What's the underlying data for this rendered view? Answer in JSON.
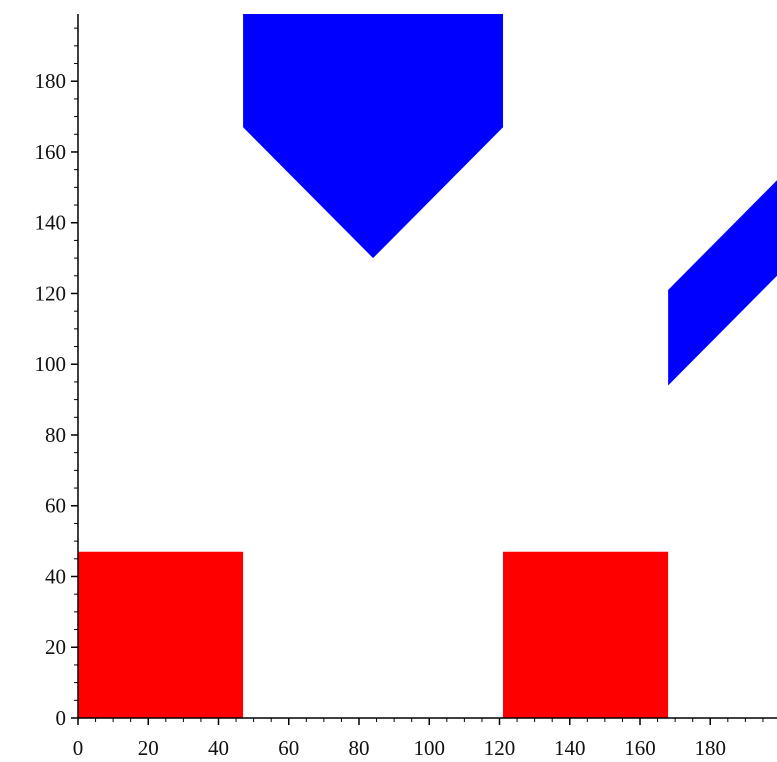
{
  "chart_data": {
    "type": "area",
    "xlim": [
      0,
      199
    ],
    "ylim": [
      0,
      199
    ],
    "x_ticks": [
      0,
      20,
      40,
      60,
      80,
      100,
      120,
      140,
      160,
      180
    ],
    "y_ticks": [
      0,
      20,
      40,
      60,
      80,
      100,
      120,
      140,
      160,
      180
    ],
    "x_minor_ticks": [
      5,
      10,
      15,
      25,
      30,
      35,
      45,
      50,
      55,
      65,
      70,
      75,
      85,
      90,
      95,
      105,
      110,
      115,
      125,
      130,
      135,
      145,
      150,
      155,
      165,
      170,
      175,
      185,
      190,
      195
    ],
    "y_minor_ticks": [
      5,
      10,
      15,
      25,
      30,
      35,
      45,
      50,
      55,
      65,
      70,
      75,
      85,
      90,
      95,
      105,
      110,
      115,
      125,
      130,
      135,
      145,
      150,
      155,
      165,
      170,
      175,
      185,
      190,
      195
    ],
    "grid": false,
    "colors": {
      "red": "#ff0000",
      "blue": "#0000ff",
      "axis": "#000000"
    },
    "series": [
      {
        "shape": "left-red-rectangle",
        "color": "red",
        "points": [
          [
            0,
            0
          ],
          [
            47,
            0
          ],
          [
            47,
            47
          ],
          [
            0,
            47
          ]
        ]
      },
      {
        "shape": "right-red-rectangle",
        "color": "red",
        "points": [
          [
            121,
            0
          ],
          [
            168,
            0
          ],
          [
            168,
            47
          ],
          [
            121,
            47
          ]
        ]
      },
      {
        "shape": "top-blue-pentagon",
        "color": "blue",
        "points": [
          [
            47,
            199
          ],
          [
            121,
            199
          ],
          [
            121,
            167
          ],
          [
            84,
            130
          ],
          [
            47,
            167
          ]
        ]
      },
      {
        "shape": "right-blue-parallelogram",
        "color": "blue",
        "points": [
          [
            168,
            94
          ],
          [
            168,
            121
          ],
          [
            199,
            152
          ],
          [
            199,
            125
          ]
        ]
      }
    ]
  }
}
